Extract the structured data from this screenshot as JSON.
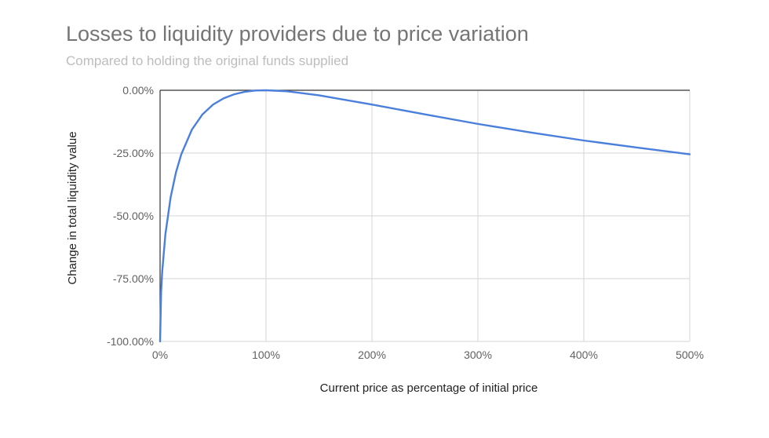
{
  "chart_data": {
    "type": "line",
    "title": "Losses to liquidity providers due to price variation",
    "subtitle": "Compared to holding the original funds supplied",
    "xlabel": "Current price as percentage of initial price",
    "ylabel": "Change in total liquidity value",
    "xlim": [
      0,
      500
    ],
    "ylim": [
      -100,
      0
    ],
    "x_ticks": [
      0,
      100,
      200,
      300,
      400,
      500
    ],
    "x_tick_labels": [
      "0%",
      "100%",
      "200%",
      "300%",
      "400%",
      "500%"
    ],
    "y_ticks": [
      0,
      -25,
      -50,
      -75,
      -100
    ],
    "y_tick_labels": [
      "0.00%",
      "-25.00%",
      "-50.00%",
      "-75.00%",
      "-100.00%"
    ],
    "grid": true,
    "series": [
      {
        "name": "Change in total liquidity value",
        "color": "#4a7fdc",
        "x": [
          0,
          1,
          2,
          5,
          10,
          15,
          20,
          30,
          40,
          50,
          60,
          70,
          80,
          90,
          100,
          120,
          150,
          200,
          250,
          300,
          350,
          400,
          450,
          500
        ],
        "y": [
          -100,
          -80.2,
          -72.3,
          -57.4,
          -42.5,
          -32.7,
          -25.5,
          -15.7,
          -9.6,
          -5.7,
          -3.2,
          -1.6,
          -0.6,
          -0.1,
          0,
          -0.4,
          -2.0,
          -5.7,
          -9.6,
          -13.4,
          -16.8,
          -20.0,
          -22.8,
          -25.5
        ]
      }
    ]
  }
}
